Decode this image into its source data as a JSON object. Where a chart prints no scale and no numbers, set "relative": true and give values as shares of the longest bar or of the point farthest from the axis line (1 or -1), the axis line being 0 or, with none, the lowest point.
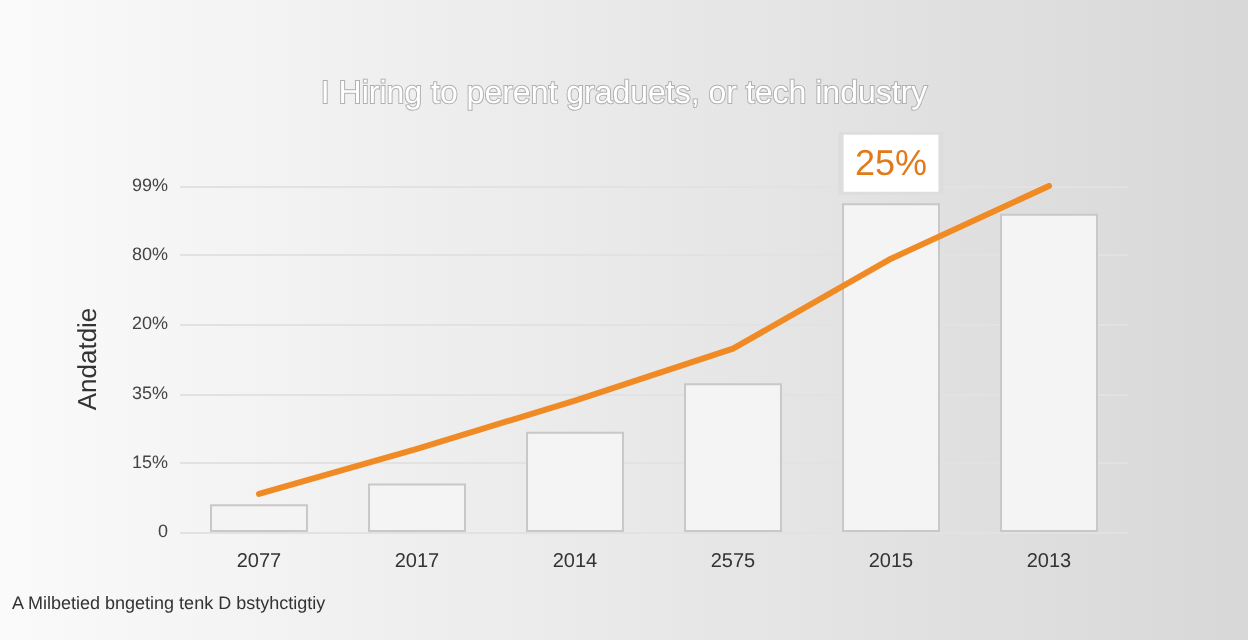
{
  "chart_data": {
    "type": "bar",
    "title": "I Hiring to perent graduets, or tech industry",
    "ylabel": "Andatdie",
    "relative": true,
    "categories": [
      "2077",
      "2017",
      "2014",
      "2575",
      "2015",
      "2013"
    ],
    "series": [
      {
        "color": "#f4f4f4",
        "values": [
          0.08,
          0.14,
          0.29,
          0.43,
          0.95,
          0.92
        ]
      },
      {
        "type": "line",
        "color": "#f08a24",
        "values": [
          0.11,
          0.24,
          0.38,
          0.53,
          0.79,
          1
        ]
      }
    ],
    "grid": "y",
    "marker": "none",
    "annotations": [
      {
        "text": "25%",
        "x": "2015",
        "y": 0.95
      },
      "99%",
      "80%",
      "20%",
      "35%",
      "15%",
      "0",
      "A Milbetied bngeting tenk D bstyhctigtiy"
    ]
  }
}
